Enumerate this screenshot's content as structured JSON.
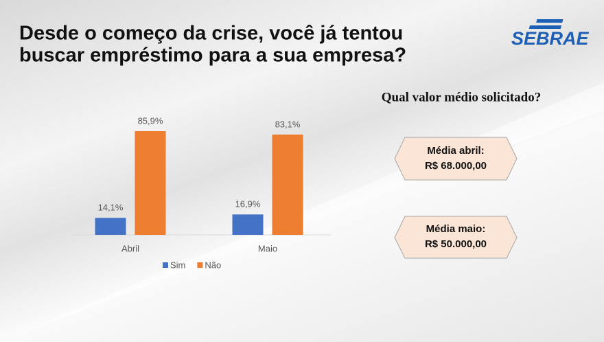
{
  "title_lines": [
    "Desde o começo da crise, você já tentou",
    "buscar empréstimo para a sua empresa?"
  ],
  "logo": "SEBRAE",
  "question": "Qual valor médio solicitado?",
  "boxes": [
    {
      "label": "Média abril:",
      "amount": "R$ 68.000,00"
    },
    {
      "label": "Média maio:",
      "amount": "R$ 50.000,00"
    }
  ],
  "chart_data": {
    "type": "bar",
    "categories": [
      "Abril",
      "Maio"
    ],
    "series": [
      {
        "name": "Sim",
        "color": "#4472c4",
        "values": [
          14.1,
          16.9
        ],
        "value_labels": [
          "14,1%",
          "16,9%"
        ]
      },
      {
        "name": "Não",
        "color": "#ed7d31",
        "values": [
          85.9,
          83.1
        ],
        "value_labels": [
          "85,9%",
          "83,1%"
        ]
      }
    ]
  }
}
